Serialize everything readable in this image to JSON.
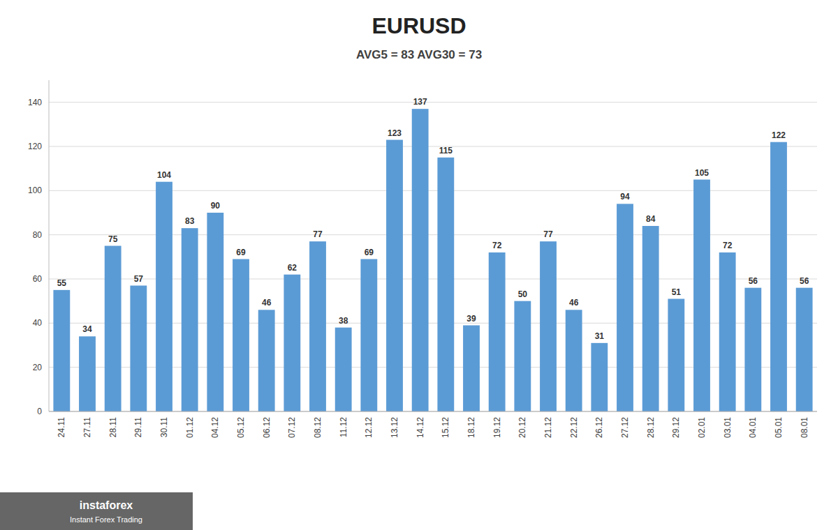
{
  "chart_data": {
    "type": "bar",
    "title": "EURUSD",
    "subtitle": "AVG5 = 83 AVG30 = 73",
    "categories": [
      "24.11",
      "27.11",
      "28.11",
      "29.11",
      "30.11",
      "01.12",
      "04.12",
      "05.12",
      "06.12",
      "07.12",
      "08.12",
      "11.12",
      "12.12",
      "13.12",
      "14.12",
      "15.12",
      "18.12",
      "19.12",
      "20.12",
      "21.12",
      "22.12",
      "26.12",
      "27.12",
      "28.12",
      "29.12",
      "02.01",
      "03.01",
      "04.01",
      "05.01",
      "08.01"
    ],
    "values": [
      55,
      34,
      75,
      57,
      104,
      83,
      90,
      69,
      46,
      62,
      77,
      38,
      69,
      123,
      137,
      115,
      39,
      72,
      50,
      77,
      46,
      31,
      94,
      84,
      51,
      105,
      72,
      56,
      122,
      56
    ],
    "color": "#5b9bd5",
    "ylim": [
      0,
      150
    ],
    "yticks": [
      0,
      20,
      40,
      60,
      80,
      100,
      120,
      140
    ],
    "grid": true,
    "data_labels": true,
    "annotations": [
      "instaforex",
      "Instant Forex Trading"
    ]
  }
}
